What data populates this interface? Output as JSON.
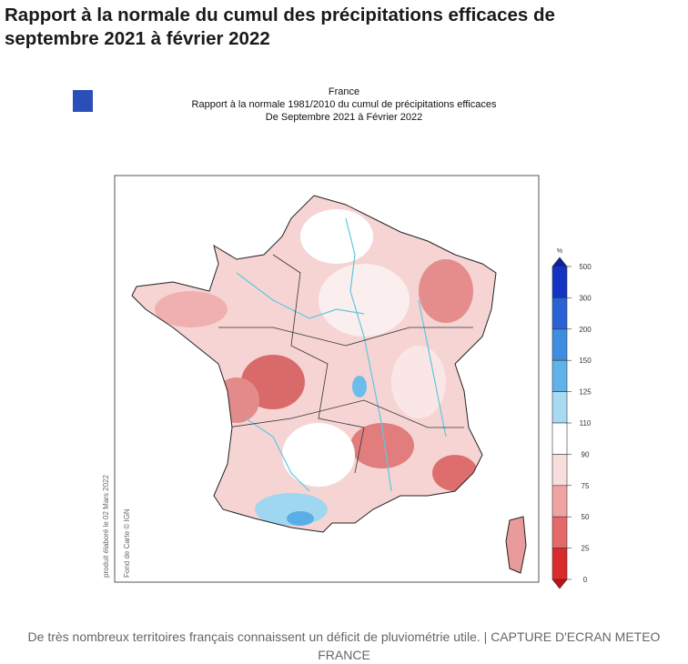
{
  "title": "Rapport à la normale du cumul des précipitations efficaces de septembre 2021 à février 2022",
  "map": {
    "header": [
      "France",
      "Rapport à la normale 1981/2010 du cumul de précipitations efficaces",
      "De Septembre 2021 à Février 2022"
    ],
    "legend": {
      "unit": "%",
      "ticks": [
        500,
        300,
        200,
        150,
        125,
        110,
        90,
        75,
        50,
        25,
        0
      ]
    },
    "credits": [
      "produit élaboré le 02 Mars 2022",
      "Fond de Carte © IGN"
    ]
  },
  "caption": "De très nombreux territoires français connaissent un déficit de pluviométrie utile. | CAPTURE D'ECRAN METEO FRANCE"
}
